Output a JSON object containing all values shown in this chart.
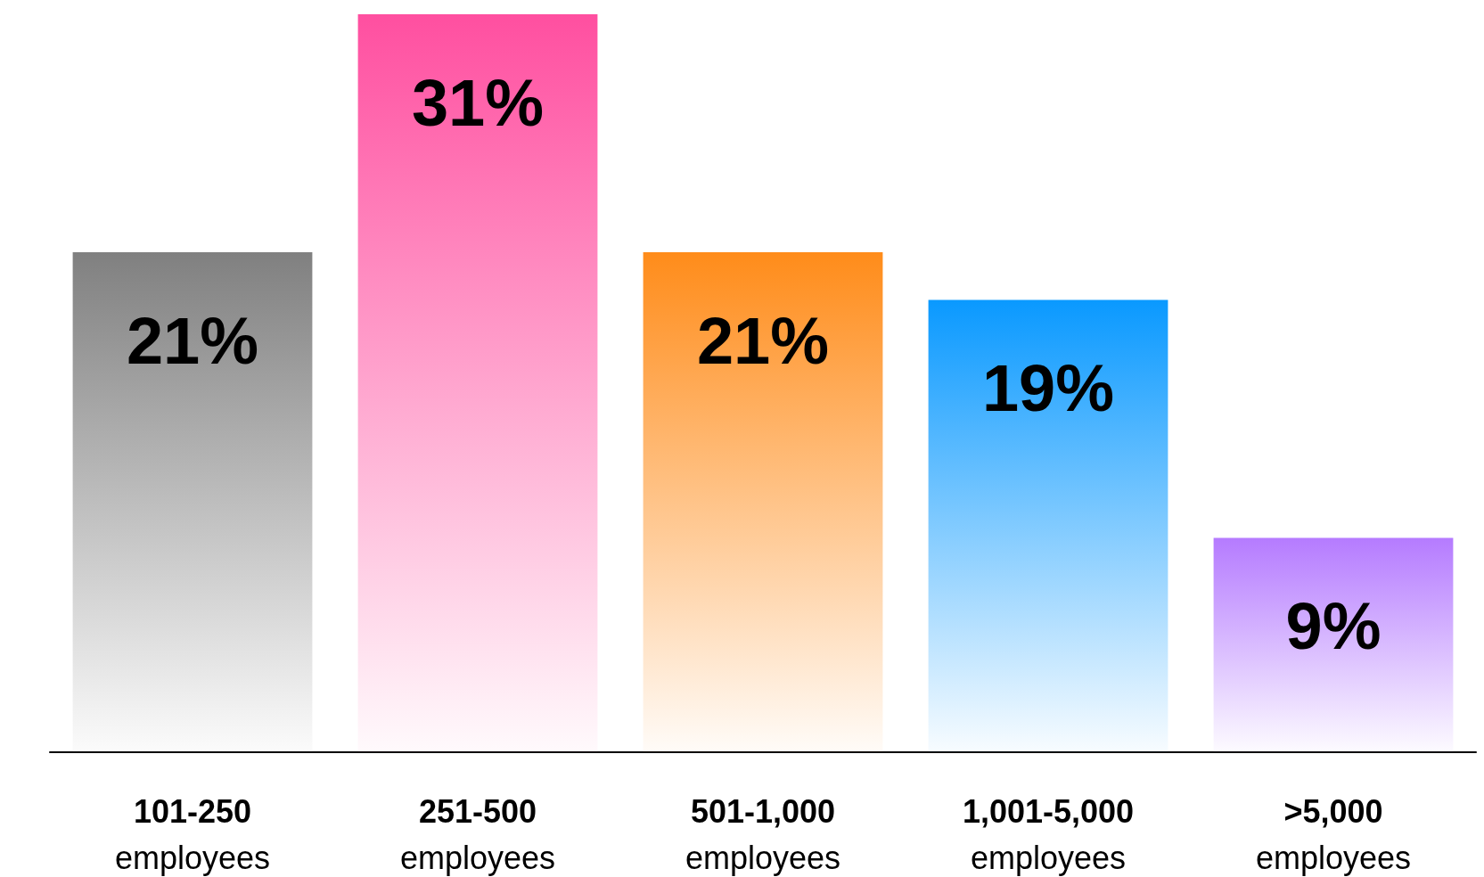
{
  "chart_data": {
    "type": "bar",
    "categories": [
      "101-250\nemployees",
      "251-500\nemployees",
      "501-1,000\nemployees",
      "1,001-5,000\nemployees",
      ">5,000\nemployees"
    ],
    "values": [
      21,
      31,
      21,
      19,
      9
    ],
    "colors": [
      "#808080",
      "#ff4fa0",
      "#ff8c1a",
      "#0a99ff",
      "#b57bff"
    ],
    "value_labels": [
      "21%",
      "31%",
      "21%",
      "19%",
      "9%"
    ],
    "grid": false
  }
}
